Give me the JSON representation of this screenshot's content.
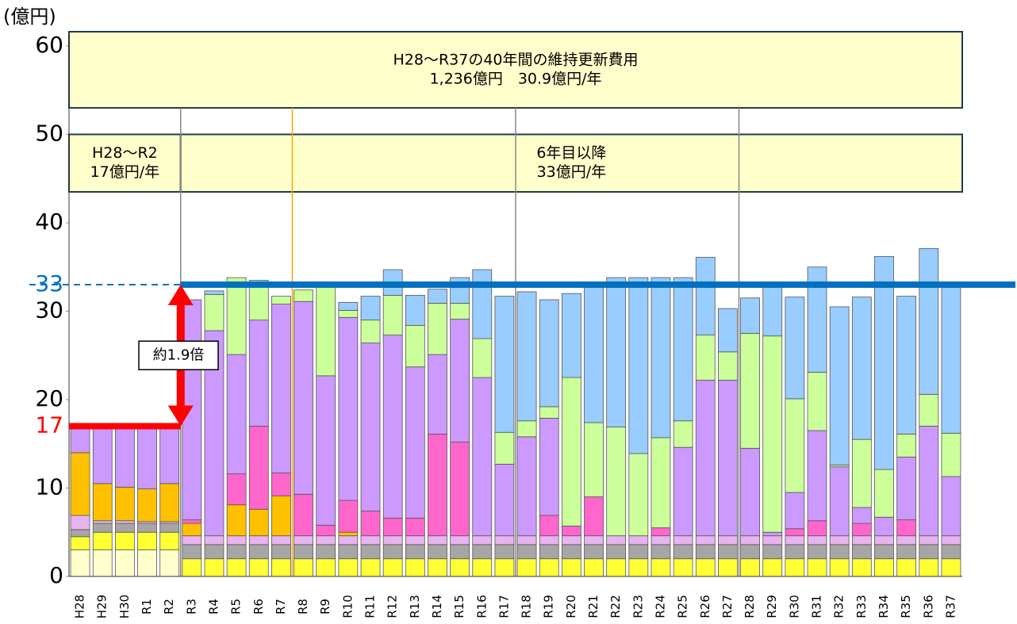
{
  "chart_data": {
    "type": "stacked_bar",
    "y_unit": "(億円)",
    "categories": [
      "H28",
      "H29",
      "H30",
      "R1",
      "R2",
      "R3",
      "R4",
      "R5",
      "R6",
      "R7",
      "R8",
      "R9",
      "R10",
      "R11",
      "R12",
      "R13",
      "R14",
      "R15",
      "R16",
      "R17",
      "R18",
      "R19",
      "R20",
      "R21",
      "R22",
      "R23",
      "R24",
      "R25",
      "R26",
      "R27",
      "R28",
      "R29",
      "R30",
      "R31",
      "R32",
      "R33",
      "R34",
      "R35",
      "R36",
      "R37"
    ],
    "series": [
      {
        "color": "#ffffcc",
        "values": [
          3,
          3,
          3,
          3,
          3,
          0,
          0,
          0,
          0,
          0,
          0,
          0,
          0,
          0,
          0,
          0,
          0,
          0,
          0,
          0,
          0,
          0,
          0,
          0,
          0,
          0,
          0,
          0,
          0,
          0,
          0,
          0,
          0,
          0,
          0,
          0,
          0,
          0,
          0,
          0
        ]
      },
      {
        "color": "#ffff33",
        "values": [
          1.5,
          2,
          2,
          2,
          2,
          2,
          2,
          2,
          2,
          2,
          2,
          2,
          2,
          2,
          2,
          2,
          2,
          2,
          2,
          2,
          2,
          2,
          2,
          2,
          2,
          2,
          2,
          2,
          2,
          2,
          2,
          2,
          2,
          2,
          2,
          2,
          2,
          2,
          2,
          2
        ]
      },
      {
        "color": "#a6a6a6",
        "values": [
          0.8,
          1,
          1,
          1,
          1,
          1.6,
          1.6,
          1.6,
          1.6,
          1.6,
          1.6,
          1.6,
          1.6,
          1.6,
          1.6,
          1.6,
          1.6,
          1.6,
          1.6,
          1.6,
          1.6,
          1.6,
          1.6,
          1.6,
          1.6,
          1.6,
          1.6,
          1.6,
          1.6,
          1.6,
          1.6,
          1.6,
          1.6,
          1.6,
          1.6,
          1.6,
          1.6,
          1.6,
          1.6,
          1.6
        ]
      },
      {
        "color": "#e8b4f0",
        "values": [
          1.6,
          0.3,
          0.3,
          0.2,
          0.2,
          1,
          1,
          1,
          1,
          1,
          1,
          1,
          1,
          1,
          1,
          1,
          1,
          1,
          1,
          1,
          1,
          1,
          1,
          1,
          1,
          1,
          1,
          1,
          1,
          1,
          1,
          1,
          1,
          1,
          1,
          1,
          1,
          1,
          1,
          1
        ]
      },
      {
        "color": "#ffc000",
        "values": [
          7.1,
          4.2,
          3.8,
          3.7,
          4.3,
          1.4,
          0,
          3.5,
          3.0,
          4.5,
          0,
          0,
          0.4,
          0,
          0,
          0,
          0,
          0,
          0,
          0,
          0,
          0,
          0,
          0,
          0,
          0,
          0,
          0,
          0,
          0,
          0,
          0,
          0,
          0,
          0,
          0,
          0,
          0,
          0,
          0
        ]
      },
      {
        "color": "#ff66cc",
        "values": [
          0,
          0,
          0,
          0,
          0,
          0.4,
          0,
          3.5,
          9.4,
          2.6,
          4.7,
          1.2,
          3.6,
          2.8,
          2.0,
          2.0,
          11.5,
          10.6,
          0,
          0,
          0,
          2.3,
          1.1,
          4.4,
          0,
          0,
          0.9,
          0,
          0,
          0,
          0,
          0,
          0.8,
          1.7,
          0,
          1.4,
          0,
          1.8,
          0,
          0
        ]
      },
      {
        "color": "#cc99ff",
        "values": [
          2.8,
          6.3,
          6.7,
          6.9,
          6.3,
          24.9,
          23.2,
          13.5,
          12,
          19.1,
          21.8,
          16.9,
          20.7,
          19,
          20.7,
          17.1,
          9,
          13.9,
          17.9,
          8.1,
          11.2,
          11,
          0,
          0,
          0,
          0,
          0,
          10,
          17.6,
          17.6,
          9.9,
          0.4,
          4.1,
          10.2,
          7.8,
          1.8,
          2.1,
          7.1,
          12.4,
          6.7
        ]
      },
      {
        "color": "#ccff99",
        "values": [
          0,
          0,
          0,
          0,
          0,
          0,
          4.1,
          8.7,
          4,
          0.9,
          1.3,
          10.6,
          0.8,
          2.6,
          4.5,
          4.7,
          5.8,
          1.8,
          4.4,
          3.6,
          1.8,
          1.3,
          16.8,
          8.4,
          12.3,
          9.3,
          10.2,
          3,
          5.1,
          3.2,
          13,
          22.2,
          10.6,
          6.6,
          0.2,
          7.7,
          5.4,
          2.6,
          3.6,
          4.9
        ]
      },
      {
        "color": "#99ccff",
        "values": [
          0,
          0,
          0,
          0,
          0,
          0,
          0.4,
          0,
          0.5,
          0,
          0,
          0,
          0.9,
          2.7,
          2.9,
          3.4,
          1.6,
          2.9,
          7.8,
          15.4,
          14.6,
          12.1,
          9.5,
          15.5,
          16.9,
          19.9,
          18.1,
          16.2,
          8.8,
          4.9,
          4,
          6,
          11.5,
          11.9,
          17.9,
          16.1,
          24.1,
          15.6,
          16.5,
          16.8
        ]
      }
    ],
    "ylim": [
      0,
      60
    ],
    "yticks": [
      0,
      10,
      20,
      30,
      40,
      50,
      60
    ],
    "reference_lines": [
      {
        "value": 33,
        "color": "#0070c0"
      },
      {
        "value": 17,
        "color": "#ff0000"
      }
    ],
    "ratio_label": "約1.9倍",
    "annotations": [
      {
        "lines": [
          "H28～R37の40年間の維持更新費用",
          "1,236億円　30.9億円/年"
        ]
      },
      {
        "lines": [
          "H28～R2",
          "17億円/年"
        ]
      },
      {
        "lines": [
          "6年目以降",
          "33億円/年"
        ]
      }
    ]
  }
}
